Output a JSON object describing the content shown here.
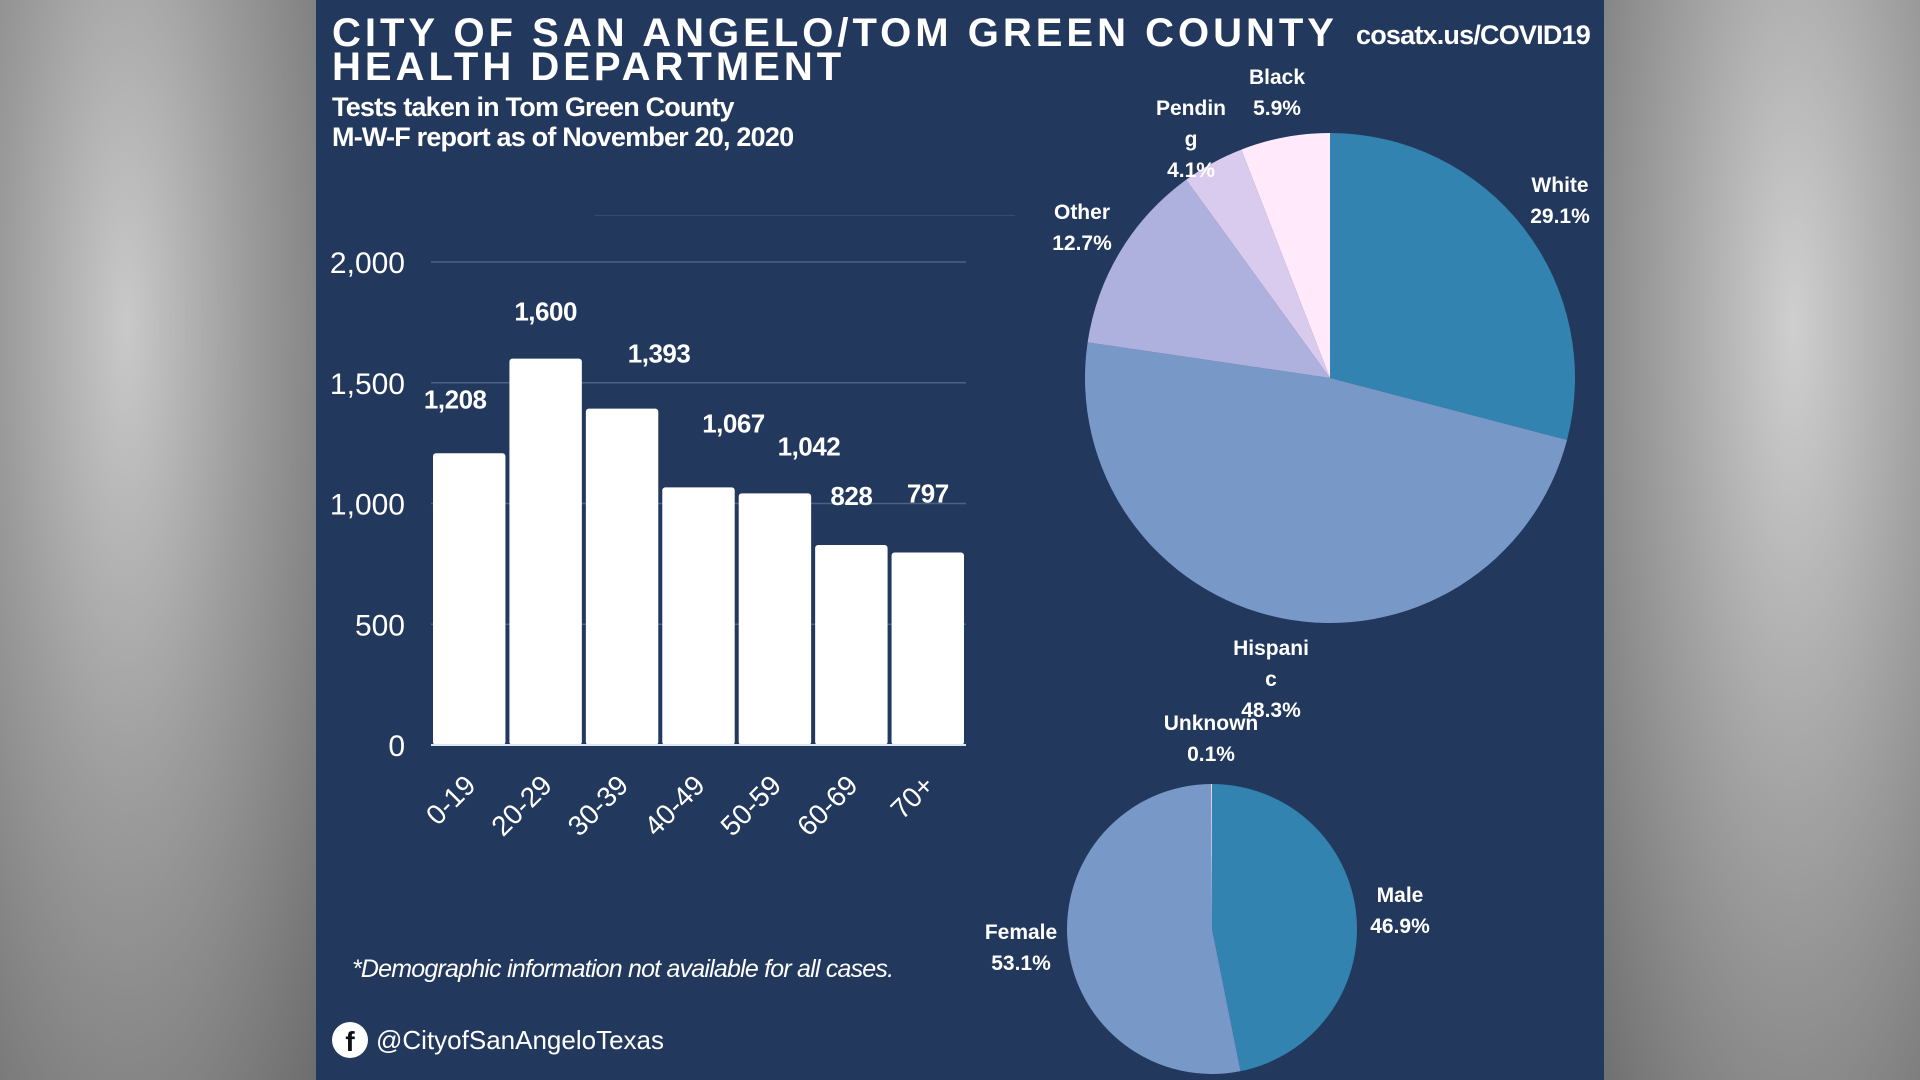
{
  "header": {
    "title_line1": "CITY OF SAN ANGELO/TOM GREEN COUNTY",
    "title_line2": "HEALTH DEPARTMENT",
    "subtitle_line1": "Tests taken in Tom Green County",
    "subtitle_line2": "M-W-F report as of November 20, 2020",
    "url": "cosatx.us/COVID19"
  },
  "footer": {
    "footnote": "*Demographic information not available for all cases.",
    "social_icon": "facebook-icon",
    "social_handle": "@CityofSanAngeloTexas"
  },
  "colors": {
    "background": "#22385d",
    "bar": "#ffffff",
    "white_slice": "#3283b0",
    "hispanic_slice": "#7899c8",
    "other_slice": "#aeb0dd",
    "pending_slice": "#d9cbee",
    "black_slice": "#ffe9fb"
  },
  "chart_data": [
    {
      "type": "bar",
      "title": "Tests by age group",
      "categories": [
        "0-19",
        "20-29",
        "30-39",
        "40-49",
        "50-59",
        "60-69",
        "70+"
      ],
      "values": [
        1208,
        1600,
        1393,
        1067,
        1042,
        828,
        797
      ],
      "value_labels": [
        "1,208",
        "1,600",
        "1,393",
        "1,067",
        "1,042",
        "828",
        "797"
      ],
      "ylim": [
        0,
        2000
      ],
      "yticks": [
        0,
        500,
        1000,
        1500,
        2000
      ],
      "ytick_labels": [
        "0",
        "500",
        "1,000",
        "1,500",
        "2,000"
      ],
      "xlabel": "",
      "ylabel": "",
      "grid": true
    },
    {
      "type": "pie",
      "title": "Tests by race/ethnicity",
      "slices": [
        {
          "label": "White",
          "label_lines": [
            "White"
          ],
          "value": 29.1,
          "pct_label": "29.1%",
          "color_key": "white_slice"
        },
        {
          "label": "Hispanic",
          "label_lines": [
            "Hispani",
            "c"
          ],
          "value": 48.3,
          "pct_label": "48.3%",
          "color_key": "hispanic_slice"
        },
        {
          "label": "Other",
          "label_lines": [
            "Other"
          ],
          "value": 12.7,
          "pct_label": "12.7%",
          "color_key": "other_slice"
        },
        {
          "label": "Pending",
          "label_lines": [
            "Pendin",
            "g"
          ],
          "value": 4.1,
          "pct_label": "4.1%",
          "color_key": "pending_slice"
        },
        {
          "label": "Black",
          "label_lines": [
            "Black"
          ],
          "value": 5.9,
          "pct_label": "5.9%",
          "color_key": "black_slice"
        }
      ]
    },
    {
      "type": "pie",
      "title": "Tests by sex",
      "slices": [
        {
          "label": "Male",
          "label_lines": [
            "Male"
          ],
          "value": 46.9,
          "pct_label": "46.9%",
          "color_key": "white_slice"
        },
        {
          "label": "Female",
          "label_lines": [
            "Female"
          ],
          "value": 53.1,
          "pct_label": "53.1%",
          "color_key": "hispanic_slice"
        },
        {
          "label": "Unknown",
          "label_lines": [
            "Unknown"
          ],
          "value": 0.1,
          "pct_label": "0.1%",
          "color_key": "black_slice"
        }
      ]
    }
  ]
}
